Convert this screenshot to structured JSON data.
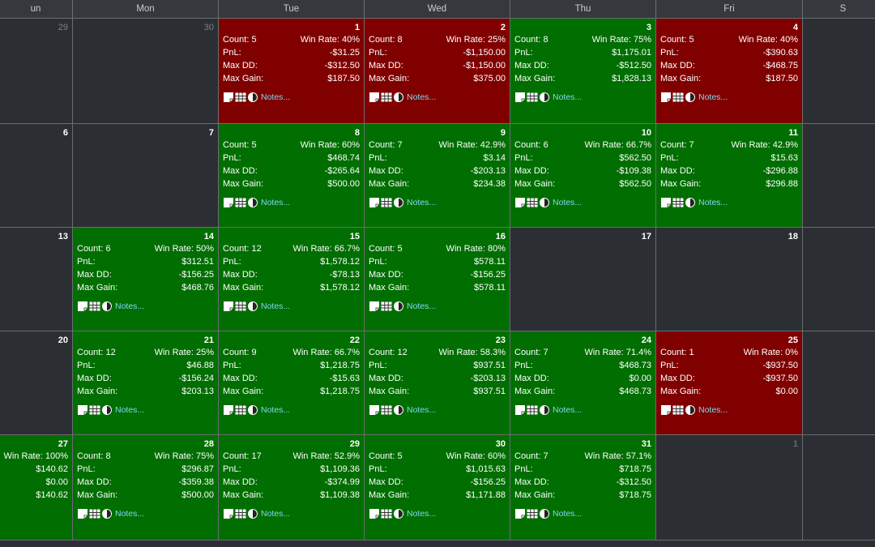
{
  "weekdays": [
    "un",
    "Mon",
    "Tue",
    "Wed",
    "Thu",
    "Fri",
    "S"
  ],
  "labels": {
    "count": "Count:",
    "win_rate": "Win Rate:",
    "pnl": "PnL:",
    "max_dd": "Max DD:",
    "max_gain": "Max Gain:",
    "notes": "Notes..."
  },
  "colors": {
    "win": "#006e00",
    "loss": "#800000",
    "empty": "#2b2e33",
    "notes_link": "#7fd8f0"
  },
  "weeks": [
    [
      {
        "day": "29",
        "other": true
      },
      {
        "day": "30",
        "other": true
      },
      {
        "day": "1",
        "result": "loss",
        "count": "5",
        "win_rate": "40%",
        "pnl": "-$31.25",
        "max_dd": "-$312.50",
        "max_gain": "$187.50"
      },
      {
        "day": "2",
        "result": "loss",
        "count": "8",
        "win_rate": "25%",
        "pnl": "-$1,150.00",
        "max_dd": "-$1,150.00",
        "max_gain": "$375.00"
      },
      {
        "day": "3",
        "result": "win",
        "count": "8",
        "win_rate": "75%",
        "pnl": "$1,175.01",
        "max_dd": "-$512.50",
        "max_gain": "$1,828.13"
      },
      {
        "day": "4",
        "result": "loss",
        "count": "5",
        "win_rate": "40%",
        "pnl": "-$390.63",
        "max_dd": "-$468.75",
        "max_gain": "$187.50"
      },
      {
        "day": ""
      }
    ],
    [
      {
        "day": "6"
      },
      {
        "day": "7"
      },
      {
        "day": "8",
        "result": "win",
        "count": "5",
        "win_rate": "60%",
        "pnl": "$468.74",
        "max_dd": "-$265.64",
        "max_gain": "$500.00"
      },
      {
        "day": "9",
        "result": "win",
        "count": "7",
        "win_rate": "42.9%",
        "pnl": "$3.14",
        "max_dd": "-$203.13",
        "max_gain": "$234.38"
      },
      {
        "day": "10",
        "result": "win",
        "count": "6",
        "win_rate": "66.7%",
        "pnl": "$562.50",
        "max_dd": "-$109.38",
        "max_gain": "$562.50"
      },
      {
        "day": "11",
        "result": "win",
        "count": "7",
        "win_rate": "42.9%",
        "pnl": "$15.63",
        "max_dd": "-$296.88",
        "max_gain": "$296.88"
      },
      {
        "day": ""
      }
    ],
    [
      {
        "day": "13"
      },
      {
        "day": "14",
        "result": "win",
        "count": "6",
        "win_rate": "50%",
        "pnl": "$312.51",
        "max_dd": "-$156.25",
        "max_gain": "$468.76"
      },
      {
        "day": "15",
        "result": "win",
        "count": "12",
        "win_rate": "66.7%",
        "pnl": "$1,578.12",
        "max_dd": "-$78.13",
        "max_gain": "$1,578.12"
      },
      {
        "day": "16",
        "result": "win",
        "count": "5",
        "win_rate": "80%",
        "pnl": "$578.11",
        "max_dd": "-$156.25",
        "max_gain": "$578.11"
      },
      {
        "day": "17"
      },
      {
        "day": "18"
      },
      {
        "day": ""
      }
    ],
    [
      {
        "day": "20"
      },
      {
        "day": "21",
        "result": "win",
        "count": "12",
        "win_rate": "25%",
        "pnl": "$46.88",
        "max_dd": "-$156.24",
        "max_gain": "$203.13"
      },
      {
        "day": "22",
        "result": "win",
        "count": "9",
        "win_rate": "66.7%",
        "pnl": "$1,218.75",
        "max_dd": "-$15.63",
        "max_gain": "$1,218.75"
      },
      {
        "day": "23",
        "result": "win",
        "count": "12",
        "win_rate": "58.3%",
        "pnl": "$937.51",
        "max_dd": "-$203.13",
        "max_gain": "$937.51"
      },
      {
        "day": "24",
        "result": "win",
        "count": "7",
        "win_rate": "71.4%",
        "pnl": "$468.73",
        "max_dd": "$0.00",
        "max_gain": "$468.73"
      },
      {
        "day": "25",
        "result": "loss",
        "count": "1",
        "win_rate": "0%",
        "pnl": "-$937.50",
        "max_dd": "-$937.50",
        "max_gain": "$0.00"
      },
      {
        "day": ""
      }
    ],
    [
      {
        "day": "27",
        "result": "win",
        "win_rate": "100%",
        "pnl": "$140.62",
        "max_dd": "$0.00",
        "max_gain": "$140.62",
        "partial": true
      },
      {
        "day": "28",
        "result": "win",
        "count": "8",
        "win_rate": "75%",
        "pnl": "$296.87",
        "max_dd": "-$359.38",
        "max_gain": "$500.00"
      },
      {
        "day": "29",
        "result": "win",
        "count": "17",
        "win_rate": "52.9%",
        "pnl": "$1,109.36",
        "max_dd": "-$374.99",
        "max_gain": "$1,109.38"
      },
      {
        "day": "30",
        "result": "win",
        "count": "5",
        "win_rate": "60%",
        "pnl": "$1,015.63",
        "max_dd": "-$156.25",
        "max_gain": "$1,171.88"
      },
      {
        "day": "31",
        "result": "win",
        "count": "7",
        "win_rate": "57.1%",
        "pnl": "$718.75",
        "max_dd": "-$312.50",
        "max_gain": "$718.75"
      },
      {
        "day": "1",
        "other": true
      },
      {
        "day": ""
      }
    ]
  ]
}
